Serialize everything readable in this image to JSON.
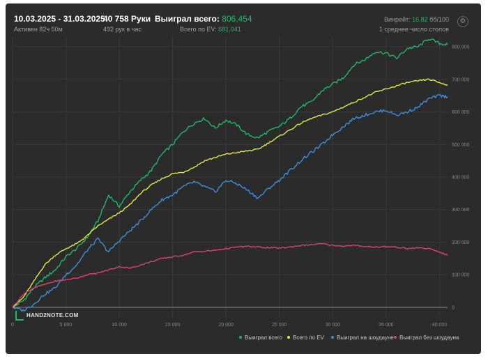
{
  "header": {
    "date_range": "10.03.2025 - 31.03.2025",
    "active_time": "Активен 82ч 50м",
    "hands": "40 758 Руки",
    "hands_per_hour": "492 рук в час",
    "won_total_label": "Выиграл всего:",
    "won_total_value": "806,454",
    "ev_total_label": "Всего по EV:",
    "ev_total_value": "681,041",
    "winrate_label": "Винрейт:",
    "winrate_value": "16.82",
    "winrate_unit": "бб/100",
    "tables_text": "1 среднее число столов",
    "gear_icon": "gear-icon"
  },
  "logo": {
    "text": "HAND2NOTE.COM"
  },
  "colors": {
    "won_total": "#1fb866",
    "ev": "#e8e83a",
    "showdown": "#3d8fe0",
    "non_showdown": "#e0406a",
    "grid": "#3a3a3a",
    "axis_text": "#8a8a8a"
  },
  "chart_data": {
    "type": "line",
    "xlabel": "",
    "ylabel": "",
    "xlim": [
      0,
      40758
    ],
    "ylim": [
      -30000,
      830000
    ],
    "x_ticks": [
      0,
      5000,
      10000,
      15000,
      20000,
      25000,
      30000,
      35000,
      40000
    ],
    "x_tick_labels": [
      "0",
      "5 000",
      "10 000",
      "15 000",
      "20 000",
      "25 000",
      "30 000",
      "35 000",
      "40 000"
    ],
    "y_ticks": [
      0,
      100000,
      200000,
      300000,
      400000,
      500000,
      600000,
      700000,
      800000
    ],
    "y_tick_labels": [
      "0",
      "100 000",
      "200 000",
      "300 000",
      "400 000",
      "500 000",
      "600 000",
      "700 000",
      "800 000"
    ],
    "grid": true,
    "legend_position": "bottom-right",
    "x": [
      0,
      1000,
      2000,
      3000,
      4000,
      5000,
      6000,
      7000,
      8000,
      9000,
      10000,
      11000,
      12000,
      13000,
      14000,
      15000,
      16000,
      17000,
      18000,
      19000,
      20000,
      21000,
      22000,
      23000,
      24000,
      25000,
      26000,
      27000,
      28000,
      29000,
      30000,
      31000,
      32000,
      33000,
      34000,
      35000,
      36000,
      37000,
      38000,
      39000,
      40000,
      40758
    ],
    "series": [
      {
        "name": "Выиграл всего",
        "key": "won_total",
        "values": [
          0,
          20000,
          60000,
          90000,
          115000,
          155000,
          180000,
          215000,
          265000,
          345000,
          310000,
          355000,
          390000,
          420000,
          470000,
          500000,
          540000,
          565000,
          580000,
          550000,
          575000,
          560000,
          530000,
          520000,
          540000,
          555000,
          580000,
          615000,
          630000,
          665000,
          685000,
          705000,
          745000,
          760000,
          785000,
          780000,
          765000,
          795000,
          800000,
          825000,
          810000,
          806454
        ]
      },
      {
        "name": "Всего по EV",
        "key": "ev",
        "values": [
          0,
          30000,
          80000,
          130000,
          160000,
          180000,
          195000,
          220000,
          250000,
          270000,
          290000,
          315000,
          350000,
          375000,
          395000,
          410000,
          415000,
          430000,
          450000,
          460000,
          470000,
          475000,
          480000,
          485000,
          505000,
          525000,
          545000,
          565000,
          580000,
          590000,
          600000,
          615000,
          630000,
          645000,
          660000,
          670000,
          680000,
          690000,
          695000,
          700000,
          690000,
          681041
        ]
      },
      {
        "name": "Выиграл на шоудауне",
        "key": "showdown",
        "values": [
          0,
          -10000,
          10000,
          40000,
          60000,
          100000,
          130000,
          175000,
          210000,
          170000,
          205000,
          235000,
          265000,
          300000,
          330000,
          345000,
          370000,
          385000,
          370000,
          355000,
          390000,
          380000,
          360000,
          335000,
          365000,
          390000,
          420000,
          450000,
          475000,
          500000,
          530000,
          555000,
          580000,
          590000,
          600000,
          605000,
          590000,
          600000,
          615000,
          640000,
          650000,
          646000
        ]
      },
      {
        "name": "Выиграл без шоудауна",
        "key": "non_showdown",
        "values": [
          0,
          40000,
          60000,
          70000,
          80000,
          85000,
          90000,
          100000,
          105000,
          115000,
          125000,
          120000,
          130000,
          140000,
          150000,
          155000,
          160000,
          170000,
          172000,
          175000,
          180000,
          185000,
          187000,
          185000,
          183000,
          182000,
          185000,
          190000,
          192000,
          195000,
          190000,
          188000,
          190000,
          187000,
          185000,
          186000,
          185000,
          180000,
          183000,
          180000,
          170000,
          160000
        ]
      }
    ]
  }
}
